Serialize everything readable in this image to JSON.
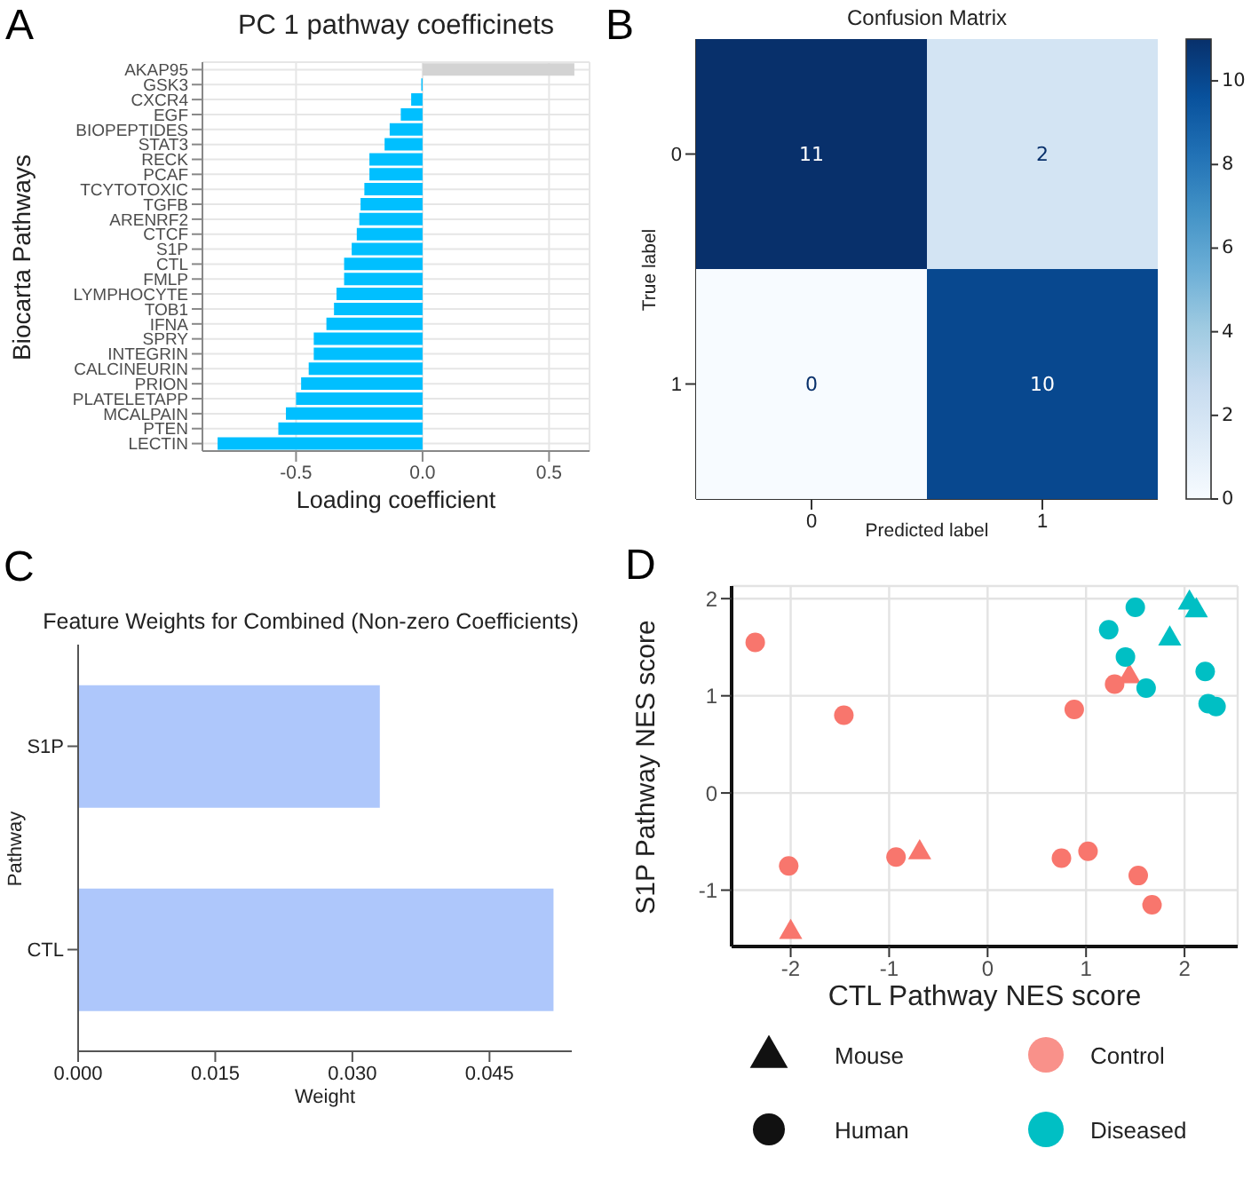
{
  "chart_data": [
    {
      "type": "bar",
      "orientation": "horizontal",
      "title": "PC 1 pathway coefficinets",
      "xlabel": "Loading coefficient",
      "ylabel": "Biocarta Pathways",
      "annotations": [
        "A"
      ],
      "categories": [
        "AKAP95",
        "GSK3",
        "CXCR4",
        "EGF",
        "BIOPEPTIDES",
        "STAT3",
        "RECK",
        "PCAF",
        "TCYTOTOXIC",
        "TGFB",
        "ARENRF2",
        "CTCF",
        "S1P",
        "CTL",
        "FMLP",
        "LYMPHOCYTE",
        "TOB1",
        "IFNA",
        "SPRY",
        "INTEGRIN",
        "CALCINEURIN",
        "PRION",
        "PLATELETAPP",
        "MCALPAIN",
        "PTEN",
        "LECTIN"
      ],
      "values": [
        0.6,
        -0.005,
        -0.045,
        -0.086,
        -0.13,
        -0.15,
        -0.21,
        -0.21,
        -0.23,
        -0.245,
        -0.25,
        -0.26,
        -0.28,
        -0.31,
        -0.31,
        -0.34,
        -0.35,
        -0.38,
        -0.43,
        -0.43,
        -0.45,
        -0.48,
        -0.5,
        -0.54,
        -0.57,
        -0.81
      ],
      "colors": [
        "#d3d3d3",
        "#00bfff",
        "#00bfff",
        "#00bfff",
        "#00bfff",
        "#00bfff",
        "#00bfff",
        "#00bfff",
        "#00bfff",
        "#00bfff",
        "#00bfff",
        "#00bfff",
        "#00bfff",
        "#00bfff",
        "#00bfff",
        "#00bfff",
        "#00bfff",
        "#00bfff",
        "#00bfff",
        "#00bfff",
        "#00bfff",
        "#00bfff",
        "#00bfff",
        "#00bfff",
        "#00bfff",
        "#00bfff"
      ],
      "xlim": [
        -0.87,
        0.66
      ],
      "xticks": [
        {
          "value": -0.5,
          "label": "-0.5"
        },
        {
          "value": 0,
          "label": "0.0"
        },
        {
          "value": 0.5,
          "label": "0.5"
        }
      ],
      "grid": true
    },
    {
      "type": "heatmap",
      "title": "Confusion Matrix",
      "xlabel": "Predicted label",
      "ylabel": "True label",
      "annotations": [
        "B"
      ],
      "categories": [
        "0",
        "1"
      ],
      "y_categories": [
        "0",
        "1"
      ],
      "cells": [
        [
          11,
          2
        ],
        [
          0,
          10
        ]
      ],
      "clim": [
        0,
        11
      ],
      "cticks": [
        0,
        2,
        4,
        6,
        8,
        10
      ],
      "data_labels": true
    },
    {
      "type": "bar",
      "orientation": "horizontal",
      "title": "Feature Weights for Combined (Non-zero Coefficients)",
      "xlabel": "Weight",
      "ylabel": "Pathway",
      "annotations": [
        "C"
      ],
      "categories": [
        "S1P",
        "CTL"
      ],
      "values": [
        0.033,
        0.052
      ],
      "color": "#aec7fb",
      "xlim": [
        0,
        0.054
      ],
      "xticks": [
        {
          "value": 0,
          "label": "0.000"
        },
        {
          "value": 0.015,
          "label": "0.015"
        },
        {
          "value": 0.03,
          "label": "0.030"
        },
        {
          "value": 0.045,
          "label": "0.045"
        }
      ],
      "grid": false
    },
    {
      "type": "scatter",
      "xlabel": "CTL Pathway NES score",
      "ylabel": "S1P Pathway NES score",
      "annotations": [
        "D",
        "Mouse",
        "Human"
      ],
      "series": [
        {
          "name": "Control",
          "color": "#f8766d",
          "marker": "triangle",
          "x": [
            -2.0,
            -0.69,
            1.44
          ],
          "values": [
            -1.42,
            -0.6,
            1.21
          ]
        },
        {
          "color": "#f8766d",
          "marker": "circle",
          "x": [
            -2.36,
            -1.46,
            0.88,
            1.29,
            -2.02,
            -0.93,
            0.75,
            1.02,
            1.53,
            1.67
          ],
          "values": [
            1.55,
            0.8,
            0.86,
            1.12,
            -0.75,
            -0.66,
            -0.67,
            -0.6,
            -0.85,
            -1.15
          ]
        },
        {
          "name": "Diseased",
          "color": "#00bfc4",
          "marker": "triangle",
          "x": [
            1.85,
            2.05,
            2.12
          ],
          "values": [
            1.6,
            1.97,
            1.89
          ]
        },
        {
          "color": "#00bfc4",
          "marker": "circle",
          "x": [
            1.23,
            1.5,
            1.4,
            1.61,
            2.21,
            2.24,
            2.32
          ],
          "values": [
            1.68,
            1.91,
            1.4,
            1.08,
            1.25,
            0.92,
            0.89
          ]
        }
      ],
      "xlim": [
        -2.6,
        2.54
      ],
      "ylim": [
        -1.58,
        2.13
      ],
      "xticks": [
        -2,
        -1,
        0,
        1,
        2
      ],
      "yticks": [
        -1,
        0,
        1,
        2
      ],
      "grid": true,
      "legend": "bottom"
    }
  ]
}
